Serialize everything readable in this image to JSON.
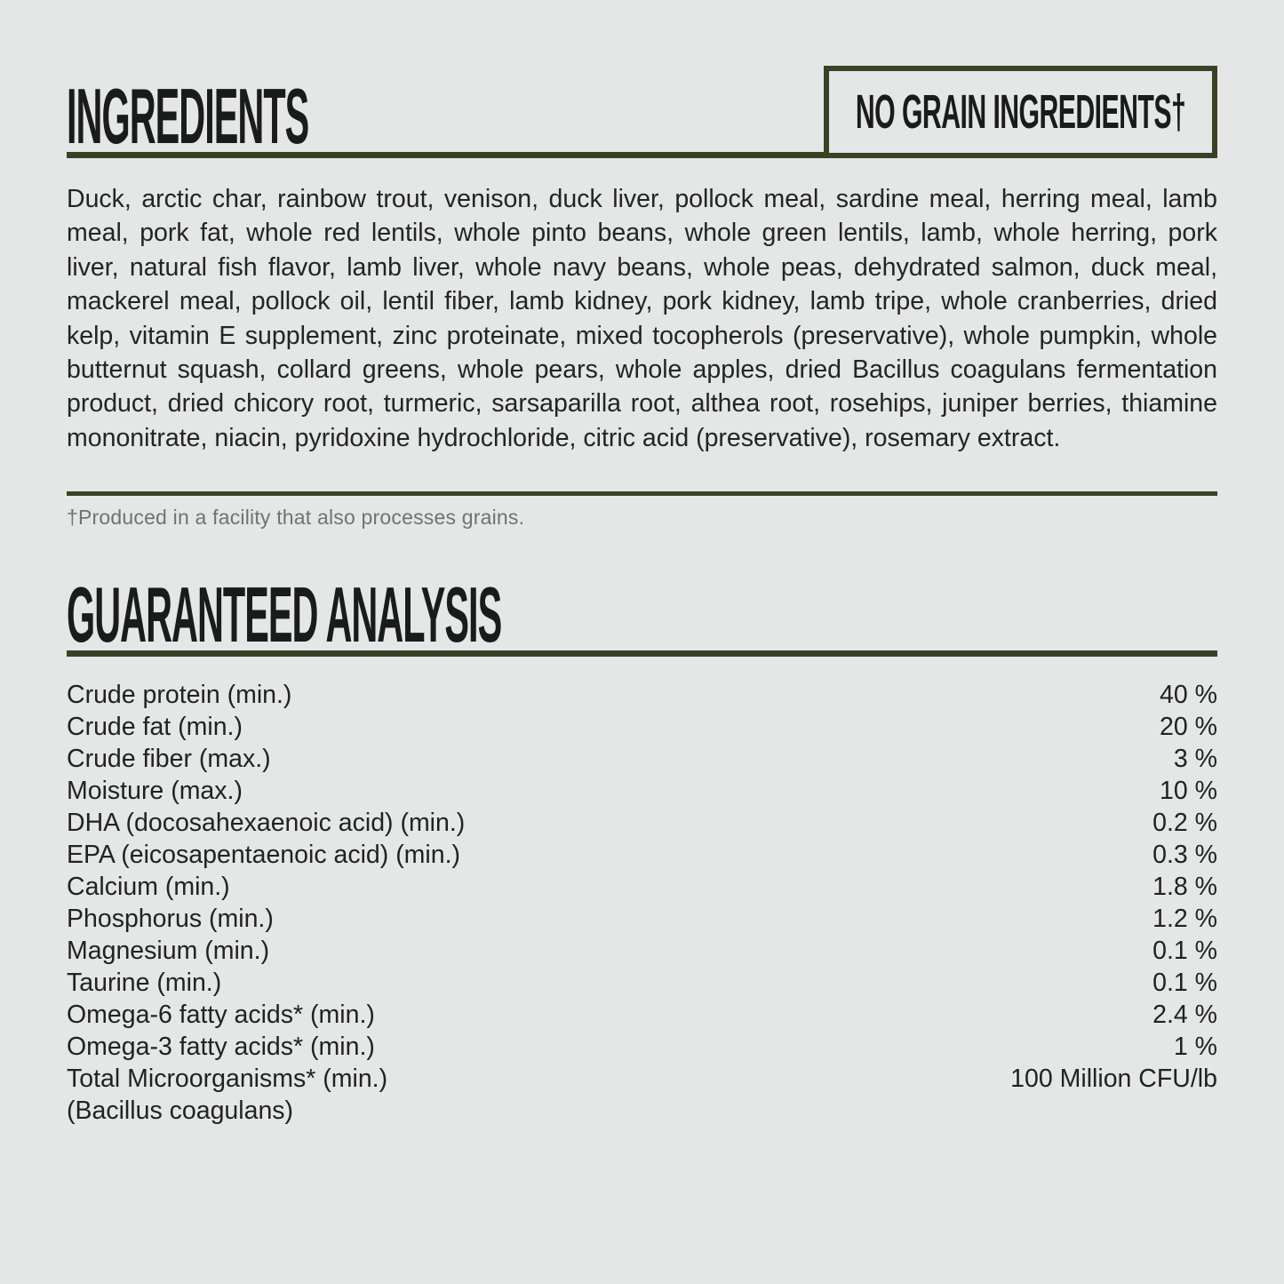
{
  "page": {
    "background_color": "#e5e6e6",
    "accent_color": "#3a4126",
    "text_color": "#212224",
    "muted_color": "#6f7375"
  },
  "ingredients_section": {
    "title": "INGREDIENTS",
    "badge_label": "NO GRAIN INGREDIENTS†",
    "paragraph_lines": [
      "Duck, arctic char, rainbow trout, venison, duck liver, pollock meal, sardine meal, herring meal, lamb",
      "meal, pork fat, whole red lentils, whole pinto beans, whole green lentils, lamb, whole herring, pork",
      "liver, natural fish flavor, lamb liver, whole navy beans, whole peas, dehydrated salmon, duck meal,",
      "mackerel meal, pollock oil, lentil fiber, lamb kidney, pork kidney, lamb tripe, whole cranberries, dried",
      "kelp, vitamin E supplement, zinc proteinate, mixed tocopherols (preservative), whole pumpkin, whole",
      "butternut squash, collard greens, whole pears, whole apples, dried Bacillus coagulans fermentation",
      "product, dried chicory root, turmeric, sarsaparilla root, althea root, rosehips, juniper berries, thiamine",
      "mononitrate, niacin, pyridoxine hydrochloride, citric acid (preservative), rosemary extract."
    ],
    "footnote": "†Produced in a facility that also processes grains."
  },
  "analysis_section": {
    "title": "GUARANTEED ANALYSIS",
    "rows": [
      {
        "label": "Crude protein (min.)",
        "value": "40 %"
      },
      {
        "label": "Crude fat (min.)",
        "value": "20 %"
      },
      {
        "label": "Crude fiber (max.)",
        "value": "3 %"
      },
      {
        "label": "Moisture (max.)",
        "value": "10 %"
      },
      {
        "label": "DHA (docosahexaenoic acid) (min.)",
        "value": "0.2 %"
      },
      {
        "label": "EPA (eicosapentaenoic acid) (min.)",
        "value": "0.3 %"
      },
      {
        "label": "Calcium (min.)",
        "value": "1.8 %"
      },
      {
        "label": "Phosphorus (min.)",
        "value": "1.2 %"
      },
      {
        "label": "Magnesium (min.)",
        "value": "0.1 %"
      },
      {
        "label": "Taurine (min.)",
        "value": "0.1 %"
      },
      {
        "label": "Omega-6 fatty acids* (min.)",
        "value": "2.4 %"
      },
      {
        "label": "Omega-3 fatty acids* (min.)",
        "value": "1 %"
      },
      {
        "label": "Total Microorganisms* (min.)",
        "value": "100 Million CFU/lb"
      },
      {
        "label": "(Bacillus coagulans)",
        "value": ""
      }
    ]
  }
}
